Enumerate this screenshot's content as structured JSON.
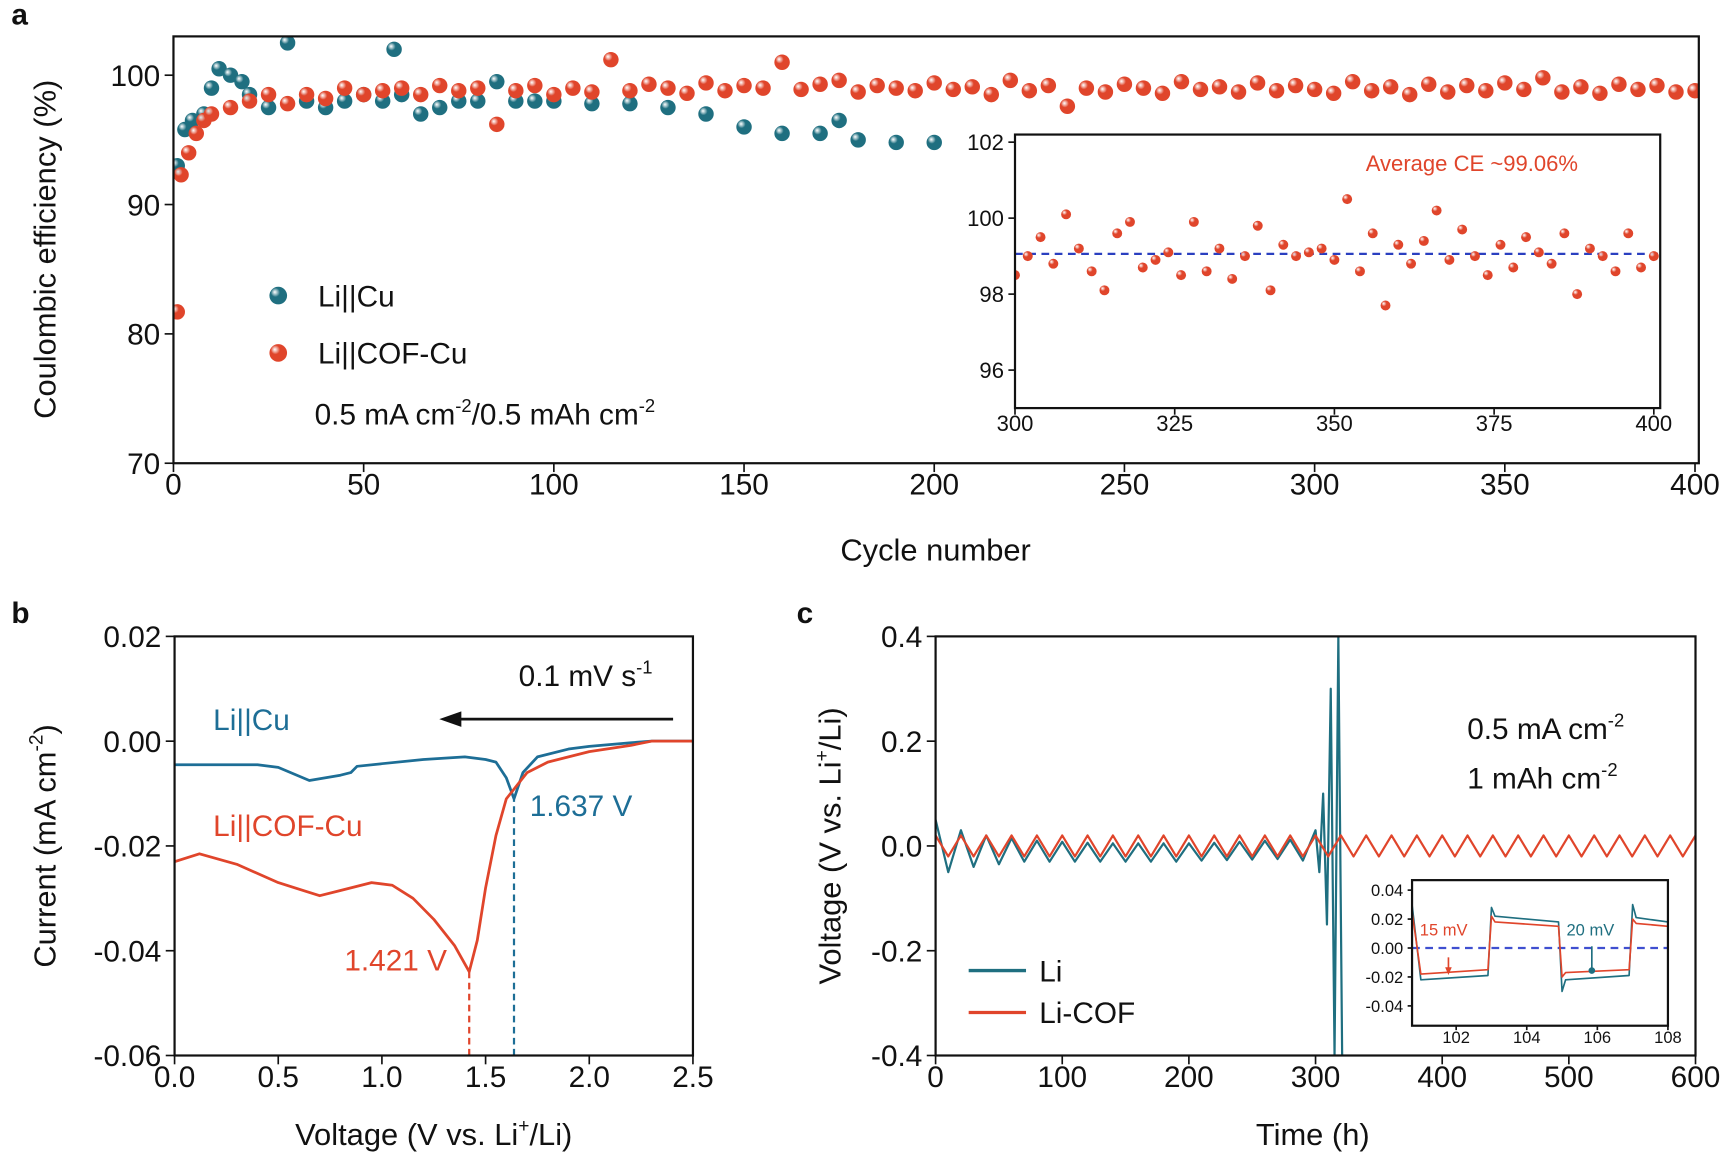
{
  "chart_data": [
    {
      "type": "scatter",
      "panel_label": "a",
      "xlabel": "Cycle number",
      "ylabel": "Coulombic efficiency (%)",
      "xlim": [
        0,
        401
      ],
      "ylim": [
        70,
        103
      ],
      "xticks": [
        0,
        50,
        100,
        150,
        200,
        250,
        300,
        350,
        400
      ],
      "yticks": [
        70,
        80,
        90,
        100
      ],
      "series": [
        {
          "name": "Li||Cu",
          "color": "#1f6f80",
          "x": [
            1,
            3,
            5,
            8,
            10,
            12,
            15,
            18,
            20,
            25,
            30,
            35,
            40,
            45,
            50,
            55,
            58,
            60,
            65,
            70,
            75,
            80,
            85,
            90,
            95,
            100,
            110,
            120,
            130,
            140,
            150,
            160,
            170,
            175,
            180,
            190,
            200
          ],
          "values": [
            93,
            95.8,
            96.5,
            97,
            99,
            100.5,
            100,
            99.5,
            98.5,
            97.5,
            102.5,
            98,
            97.5,
            98,
            98.5,
            98,
            102,
            98.5,
            97,
            97.5,
            98,
            98,
            99.5,
            98,
            98,
            98,
            97.8,
            97.8,
            97.5,
            97,
            96,
            95.5,
            95.5,
            96.5,
            95,
            94.8,
            94.8
          ]
        },
        {
          "name": "Li||COF-Cu",
          "color": "#e0452b",
          "x": [
            1,
            2,
            4,
            6,
            8,
            10,
            15,
            20,
            25,
            30,
            35,
            40,
            45,
            50,
            55,
            60,
            65,
            70,
            75,
            80,
            85,
            90,
            95,
            100,
            105,
            110,
            115,
            120,
            125,
            130,
            135,
            140,
            145,
            150,
            155,
            160,
            165,
            170,
            175,
            180,
            185,
            190,
            195,
            200,
            205,
            210,
            215,
            220,
            225,
            230,
            235,
            240,
            245,
            250,
            255,
            260,
            265,
            270,
            275,
            280,
            285,
            290,
            295,
            300,
            305,
            310,
            315,
            320,
            325,
            330,
            335,
            340,
            345,
            350,
            355,
            360,
            365,
            370,
            375,
            380,
            385,
            390,
            395,
            400
          ],
          "values": [
            81.7,
            92.3,
            94,
            95.5,
            96.5,
            97,
            97.5,
            98,
            98.5,
            97.8,
            98.5,
            98.2,
            99,
            98.5,
            98.8,
            99,
            98.5,
            99.2,
            98.8,
            99,
            96.2,
            98.8,
            99.2,
            98.5,
            99,
            98.7,
            101.2,
            98.8,
            99.3,
            99,
            98.6,
            99.4,
            98.8,
            99.2,
            99,
            101,
            98.9,
            99.3,
            99.6,
            98.7,
            99.2,
            99,
            98.8,
            99.4,
            98.9,
            99.1,
            98.5,
            99.6,
            98.8,
            99.2,
            97.6,
            99,
            98.7,
            99.3,
            99,
            98.6,
            99.5,
            98.9,
            99.1,
            98.7,
            99.4,
            98.8,
            99.2,
            98.9,
            98.6,
            99.5,
            98.8,
            99.1,
            98.5,
            99.3,
            98.7,
            99.2,
            98.8,
            99.4,
            98.9,
            99.8,
            98.7,
            99.1,
            98.6,
            99.3,
            98.9,
            99.2,
            98.7,
            98.8
          ]
        }
      ],
      "annotations": [
        {
          "text": [
            "0.5 mA cm",
            "-2",
            "/0.5 mAh cm",
            "-2"
          ],
          "color": "#111111"
        }
      ]
    },
    {
      "type": "scatter",
      "xlim": [
        300,
        401
      ],
      "ylim": [
        95,
        102.2
      ],
      "xticks": [
        300,
        325,
        350,
        375,
        400
      ],
      "yticks": [
        96,
        98,
        100,
        102
      ],
      "series": [
        {
          "color": "#e0452b",
          "x": [
            300,
            302,
            304,
            306,
            308,
            310,
            312,
            314,
            316,
            318,
            320,
            322,
            324,
            326,
            328,
            330,
            332,
            334,
            336,
            338,
            340,
            342,
            344,
            346,
            348,
            350,
            352,
            354,
            356,
            358,
            360,
            362,
            364,
            366,
            368,
            370,
            372,
            374,
            376,
            378,
            380,
            382,
            384,
            386,
            388,
            390,
            392,
            394,
            396,
            398,
            400
          ],
          "values": [
            98.5,
            99.0,
            99.5,
            98.8,
            100.1,
            99.2,
            98.6,
            98.1,
            99.6,
            99.9,
            98.7,
            98.9,
            99.1,
            98.5,
            99.9,
            98.6,
            99.2,
            98.4,
            99.0,
            99.8,
            98.1,
            99.3,
            99.0,
            99.1,
            99.2,
            98.9,
            100.5,
            98.6,
            99.6,
            97.7,
            99.3,
            98.8,
            99.4,
            100.2,
            98.9,
            99.7,
            99.0,
            98.5,
            99.3,
            98.7,
            99.5,
            99.1,
            98.8,
            99.6,
            98.0,
            99.2,
            99.0,
            98.6,
            99.6,
            98.7,
            99.0
          ]
        }
      ],
      "reference_line": 99.06,
      "reference_color": "#2a3fc0",
      "annotations": [
        {
          "text": "Average CE ~99.06%",
          "color": "#e0452b"
        }
      ]
    },
    {
      "type": "line",
      "panel_label": "b",
      "xlabel": [
        "Voltage (V vs. Li",
        "+",
        "/Li)"
      ],
      "ylabel": [
        "Current (mA cm",
        "-2",
        ")"
      ],
      "xlim": [
        0,
        2.5
      ],
      "ylim": [
        -0.06,
        0.02
      ],
      "xticks": [
        {
          "value": 0,
          "label": "0.0"
        },
        0.5,
        {
          "value": 1,
          "label": "1.0"
        },
        1.5,
        {
          "value": 2,
          "label": "2.0"
        },
        2.5
      ],
      "yticks": [
        -0.06,
        -0.04,
        -0.02,
        {
          "value": 0,
          "label": "0.00"
        },
        0.02
      ],
      "series": [
        {
          "name": "Li||Cu",
          "color": "#1d6e96",
          "x": [
            0,
            0.2,
            0.4,
            0.5,
            0.65,
            0.8,
            0.85,
            0.88,
            1.0,
            1.2,
            1.4,
            1.5,
            1.55,
            1.6,
            1.637,
            1.68,
            1.75,
            1.9,
            2.0,
            2.2,
            2.3,
            2.5
          ],
          "values": [
            -0.0045,
            -0.0045,
            -0.0045,
            -0.005,
            -0.0075,
            -0.0065,
            -0.006,
            -0.0048,
            -0.0043,
            -0.0035,
            -0.003,
            -0.0035,
            -0.004,
            -0.007,
            -0.011,
            -0.006,
            -0.003,
            -0.0015,
            -0.001,
            -0.0003,
            0,
            0
          ],
          "peak": {
            "x": 1.637,
            "y": -0.011,
            "label": "1.637 V"
          }
        },
        {
          "name": "Li||COF-Cu",
          "color": "#e0452b",
          "x": [
            0,
            0.12,
            0.3,
            0.5,
            0.7,
            0.8,
            0.85,
            0.95,
            1.05,
            1.15,
            1.25,
            1.35,
            1.421,
            1.46,
            1.5,
            1.55,
            1.6,
            1.7,
            1.8,
            2.0,
            2.2,
            2.3,
            2.5
          ],
          "values": [
            -0.023,
            -0.0215,
            -0.0235,
            -0.027,
            -0.0295,
            -0.0285,
            -0.028,
            -0.027,
            -0.0275,
            -0.03,
            -0.034,
            -0.039,
            -0.044,
            -0.038,
            -0.028,
            -0.018,
            -0.011,
            -0.006,
            -0.004,
            -0.002,
            -0.0008,
            0,
            0
          ],
          "peak": {
            "x": 1.421,
            "y": -0.044,
            "label": "1.421 V"
          }
        }
      ],
      "annotations": [
        {
          "text": [
            "0.1 mV s",
            "-1"
          ],
          "color": "#111111"
        }
      ]
    },
    {
      "type": "line",
      "panel_label": "c",
      "xlabel": "Time (h)",
      "ylabel": [
        "Voltage (V vs. Li",
        "+",
        "/Li)"
      ],
      "xlim": [
        0,
        600
      ],
      "ylim": [
        -0.4,
        0.4
      ],
      "xticks": [
        0,
        100,
        200,
        300,
        400,
        500,
        600
      ],
      "yticks": [
        -0.4,
        -0.2,
        {
          "value": 0,
          "label": "0.0"
        },
        0.2,
        0.4
      ],
      "series": [
        {
          "name": "Li",
          "color": "#1f6f80",
          "x": [
            0,
            10,
            20,
            30,
            40,
            50,
            60,
            70,
            80,
            90,
            100,
            110,
            120,
            130,
            140,
            150,
            160,
            170,
            180,
            190,
            200,
            210,
            220,
            230,
            240,
            250,
            260,
            270,
            280,
            290,
            300,
            303,
            306,
            309,
            312,
            315,
            318,
            321
          ],
          "values": [
            0.05,
            -0.05,
            0.03,
            -0.04,
            0.02,
            -0.035,
            0.015,
            -0.03,
            0.01,
            -0.03,
            0.008,
            -0.03,
            0.006,
            -0.03,
            0.005,
            -0.03,
            0.005,
            -0.03,
            0.005,
            -0.03,
            0.005,
            -0.028,
            0.006,
            -0.027,
            0.008,
            -0.026,
            0.01,
            -0.025,
            0.012,
            -0.028,
            0.03,
            -0.05,
            0.1,
            -0.15,
            0.3,
            -0.4,
            0.4,
            -0.4
          ]
        },
        {
          "name": "Li-COF",
          "color": "#e0452b",
          "x": [
            0,
            10,
            20,
            30,
            40,
            50,
            60,
            70,
            80,
            90,
            100,
            110,
            120,
            130,
            140,
            150,
            160,
            170,
            180,
            190,
            200,
            210,
            220,
            230,
            240,
            250,
            260,
            270,
            280,
            290,
            300,
            310,
            320,
            330,
            340,
            350,
            360,
            370,
            380,
            390,
            400,
            410,
            420,
            430,
            440,
            450,
            460,
            470,
            480,
            490,
            500,
            510,
            520,
            530,
            540,
            550,
            560,
            570,
            580,
            590,
            600
          ],
          "values": [
            0.02,
            -0.02,
            0.02,
            -0.02,
            0.02,
            -0.02,
            0.02,
            -0.02,
            0.02,
            -0.02,
            0.02,
            -0.02,
            0.02,
            -0.02,
            0.02,
            -0.02,
            0.02,
            -0.02,
            0.02,
            -0.02,
            0.02,
            -0.02,
            0.02,
            -0.02,
            0.02,
            -0.02,
            0.02,
            -0.02,
            0.02,
            -0.02,
            0.02,
            -0.02,
            0.02,
            -0.02,
            0.02,
            -0.02,
            0.02,
            -0.02,
            0.02,
            -0.02,
            0.02,
            -0.02,
            0.02,
            -0.02,
            0.02,
            -0.02,
            0.02,
            -0.02,
            0.02,
            -0.02,
            0.02,
            -0.02,
            0.02,
            -0.02,
            0.02,
            -0.02,
            0.02,
            -0.02,
            0.02,
            -0.02,
            0.02
          ]
        }
      ],
      "annotations": [
        {
          "text": [
            "0.5 mA cm",
            "-2"
          ],
          "color": "#111111"
        },
        {
          "text": [
            "1 mAh cm",
            "-2"
          ],
          "color": "#111111"
        }
      ]
    },
    {
      "type": "line",
      "xlim": [
        100.75,
        108
      ],
      "ylim": [
        -0.0537,
        0.0469
      ],
      "xticks": [
        102,
        104,
        106,
        108
      ],
      "yticks": [
        -0.04,
        -0.02,
        {
          "value": 0,
          "label": "0.00"
        },
        0.02,
        0.04
      ],
      "series": [
        {
          "color": "#1f6f80",
          "x": [
            100.75,
            101,
            102.9,
            103,
            103.1,
            104.9,
            105,
            105.1,
            106.9,
            107,
            107.1,
            108
          ],
          "values": [
            0.03,
            -0.022,
            -0.019,
            0.028,
            0.022,
            0.018,
            -0.03,
            -0.022,
            -0.019,
            0.03,
            0.021,
            0.018
          ]
        },
        {
          "color": "#e0452b",
          "x": [
            100.75,
            101,
            102.9,
            103,
            103.1,
            104.9,
            105,
            105.1,
            106.9,
            107,
            107.1,
            108
          ],
          "values": [
            0.025,
            -0.018,
            -0.015,
            0.022,
            0.018,
            0.015,
            -0.02,
            -0.017,
            -0.015,
            0.02,
            0.017,
            0.015
          ]
        }
      ],
      "reference_line": 0,
      "reference_color": "#3f4fd0",
      "annotations": [
        {
          "text": "15 mV",
          "color": "#e0452b"
        },
        {
          "text": "20 mV",
          "color": "#1f6f80"
        }
      ]
    }
  ]
}
